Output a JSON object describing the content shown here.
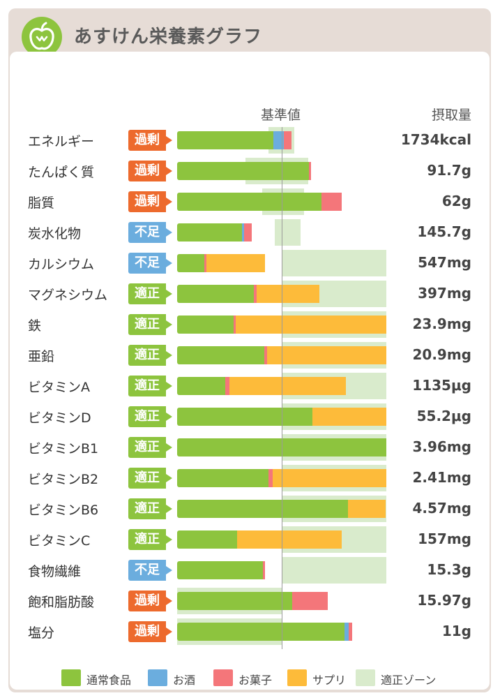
{
  "app": {
    "title": "あすけん栄養素グラフ",
    "logo_icon": "apple-icon"
  },
  "columns": {
    "reference": "基準値",
    "intake": "摂取量"
  },
  "status_labels": {
    "over": "過剰",
    "under": "不足",
    "ok": "適正"
  },
  "colors": {
    "food": "#8dc43e",
    "alcohol": "#6badde",
    "sweets": "#f4767a",
    "supplement": "#fdbb3a",
    "zone": "#d9ebcc",
    "over": "#ed6a2d",
    "under": "#6badde",
    "ok": "#8dc43e"
  },
  "legend": [
    {
      "key": "food",
      "label": "通常食品"
    },
    {
      "key": "alcohol",
      "label": "お酒"
    },
    {
      "key": "sweets",
      "label": "お菓子"
    },
    {
      "key": "supplement",
      "label": "サプリ"
    },
    {
      "key": "zone",
      "label": "適正ゾーン"
    }
  ],
  "chart_data": {
    "type": "bar",
    "orientation": "horizontal",
    "stacked": true,
    "unit": "percent of reference value",
    "reference_value": 100,
    "series": [
      "food",
      "alcohol",
      "sweets",
      "supplement"
    ],
    "rows": [
      {
        "name": "エネルギー",
        "status": "over",
        "intake": "1734kcal",
        "zone": [
          87,
          112
        ],
        "food": 92,
        "alcohol": 10,
        "sweets": 7,
        "supplement": 0
      },
      {
        "name": "たんぱく質",
        "status": "over",
        "intake": "91.7g",
        "zone": [
          65,
          125
        ],
        "food": 126,
        "alcohol": 0,
        "sweets": 2,
        "supplement": 0
      },
      {
        "name": "脂質",
        "status": "over",
        "intake": "62g",
        "zone": [
          81,
          121
        ],
        "food": 138,
        "alcohol": 0,
        "sweets": 19,
        "supplement": 0
      },
      {
        "name": "炭水化物",
        "status": "under",
        "intake": "145.7g",
        "zone": [
          93,
          118
        ],
        "food": 62,
        "alcohol": 2,
        "sweets": 7,
        "supplement": 0
      },
      {
        "name": "カルシウム",
        "status": "under",
        "intake": "547mg",
        "zone": [
          100,
          200
        ],
        "food": 26,
        "alcohol": 0,
        "sweets": 2,
        "supplement": 56
      },
      {
        "name": "マグネシウム",
        "status": "ok",
        "intake": "397mg",
        "zone": [
          100,
          200
        ],
        "food": 73,
        "alcohol": 0,
        "sweets": 3,
        "supplement": 60
      },
      {
        "name": "鉄",
        "status": "ok",
        "intake": "23.9mg",
        "zone": [
          100,
          200
        ],
        "food": 54,
        "alcohol": 0,
        "sweets": 2,
        "supplement": 144
      },
      {
        "name": "亜鉛",
        "status": "ok",
        "intake": "20.9mg",
        "zone": [
          100,
          200
        ],
        "food": 83,
        "alcohol": 0,
        "sweets": 3,
        "supplement": 114
      },
      {
        "name": "ビタミンA",
        "status": "ok",
        "intake": "1135μg",
        "zone": [
          100,
          200
        ],
        "food": 46,
        "alcohol": 0,
        "sweets": 4,
        "supplement": 111
      },
      {
        "name": "ビタミンD",
        "status": "ok",
        "intake": "55.2μg",
        "zone": [
          100,
          200
        ],
        "food": 129,
        "alcohol": 0,
        "sweets": 0,
        "supplement": 71
      },
      {
        "name": "ビタミンB1",
        "status": "ok",
        "intake": "3.96mg",
        "zone": [
          100,
          200
        ],
        "food": 200,
        "alcohol": 0,
        "sweets": 0,
        "supplement": 0
      },
      {
        "name": "ビタミンB2",
        "status": "ok",
        "intake": "2.41mg",
        "zone": [
          100,
          200
        ],
        "food": 87,
        "alcohol": 0,
        "sweets": 4,
        "supplement": 109
      },
      {
        "name": "ビタミンB6",
        "status": "ok",
        "intake": "4.57mg",
        "zone": [
          100,
          200
        ],
        "food": 163,
        "alcohol": 0,
        "sweets": 0,
        "supplement": 36
      },
      {
        "name": "ビタミンC",
        "status": "ok",
        "intake": "157mg",
        "zone": [
          100,
          200
        ],
        "food": 57,
        "alcohol": 0,
        "sweets": 0,
        "supplement": 100
      },
      {
        "name": "食物繊維",
        "status": "under",
        "intake": "15.3g",
        "zone": [
          100,
          200
        ],
        "food": 82,
        "alcohol": 0,
        "sweets": 2,
        "supplement": 0
      },
      {
        "name": "飽和脂肪酸",
        "status": "over",
        "intake": "15.97g",
        "zone": [
          0,
          100
        ],
        "food": 110,
        "alcohol": 0,
        "sweets": 34,
        "supplement": 0
      },
      {
        "name": "塩分",
        "status": "over",
        "intake": "11g",
        "zone": [
          0,
          100
        ],
        "food": 160,
        "alcohol": 4,
        "sweets": 3,
        "supplement": 0
      }
    ]
  }
}
